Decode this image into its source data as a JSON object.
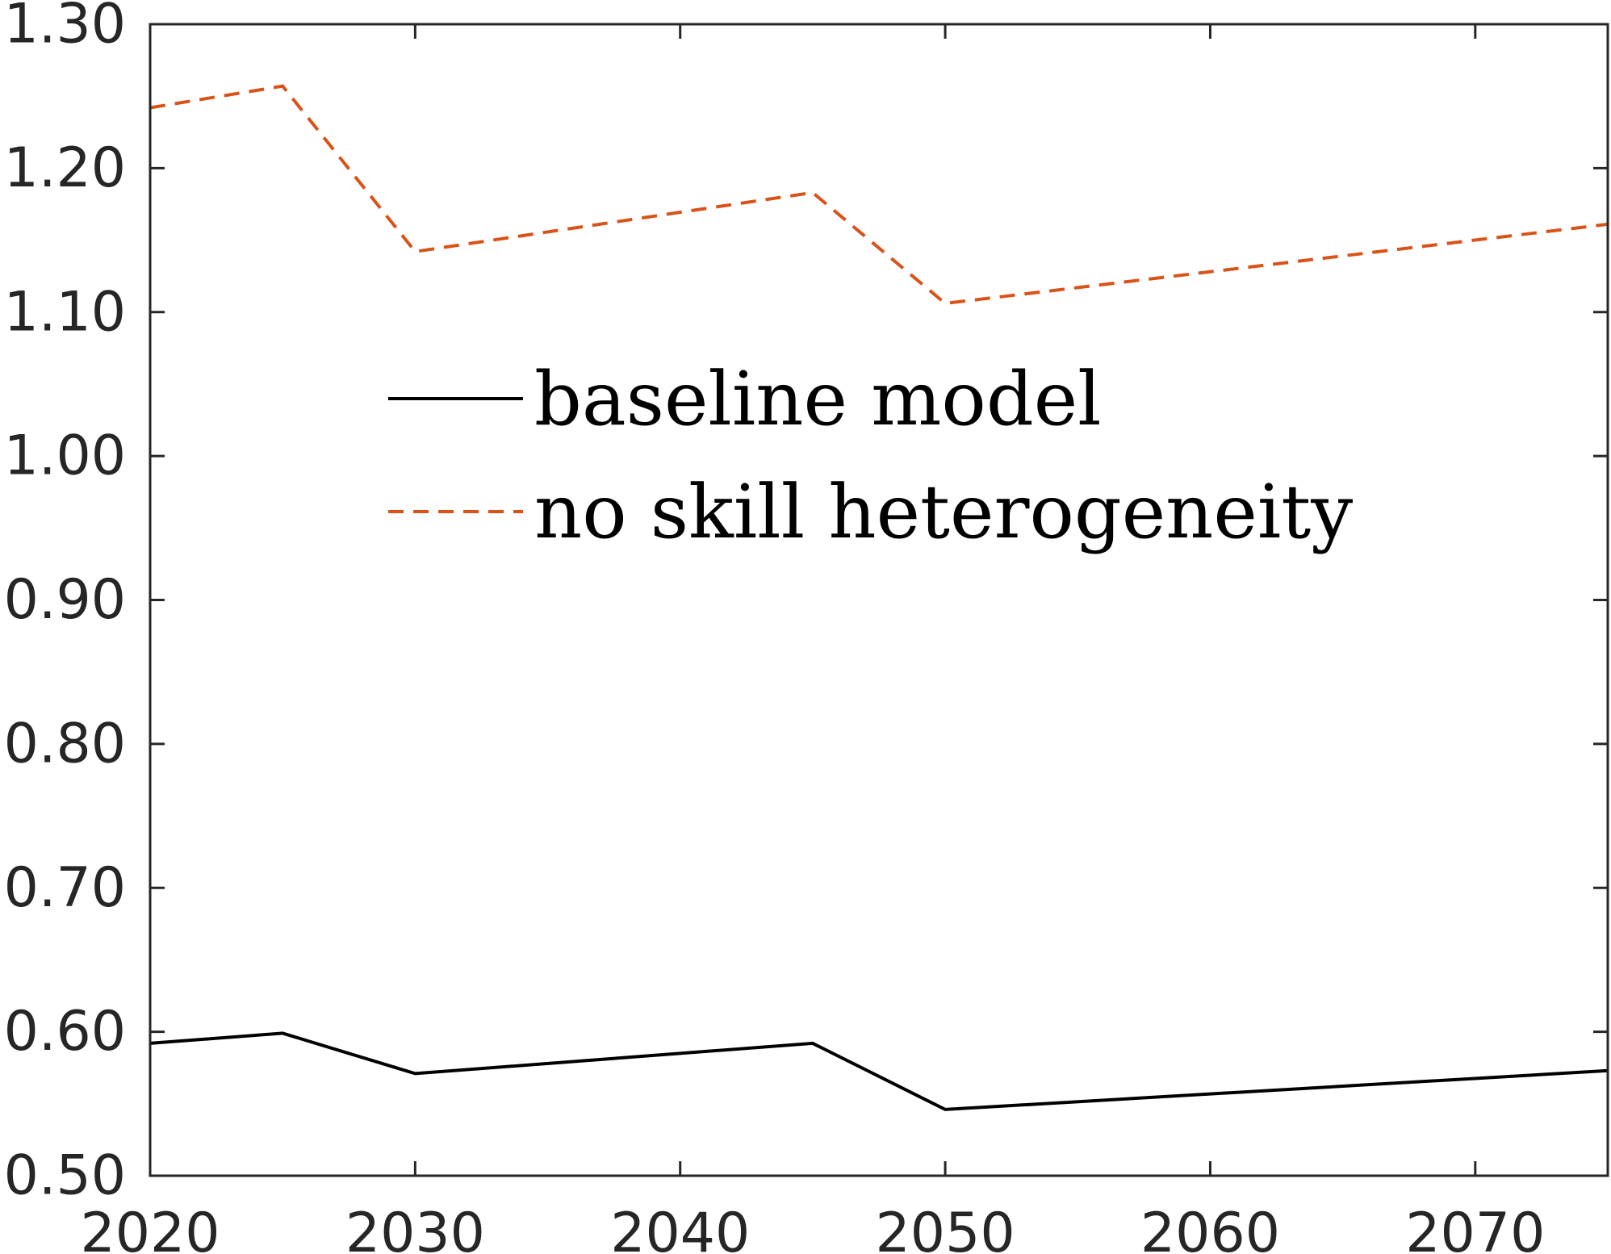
{
  "chart_data": {
    "type": "line",
    "title": "",
    "xlabel": "",
    "ylabel": "",
    "xlim": [
      2020,
      2075
    ],
    "ylim": [
      0.5,
      1.3
    ],
    "x_ticks": [
      2020,
      2030,
      2040,
      2050,
      2060,
      2070
    ],
    "x_tick_labels": [
      "2020",
      "2030",
      "2040",
      "2050",
      "2060",
      "2070"
    ],
    "y_ticks": [
      0.5,
      0.6,
      0.7,
      0.8,
      0.9,
      1.0,
      1.1,
      1.2,
      1.3
    ],
    "y_tick_labels": [
      "0.50",
      "0.60",
      "0.70",
      "0.80",
      "0.90",
      "1.00",
      "1.10",
      "1.20",
      "1.30"
    ],
    "grid": false,
    "legend_position": "upper-center",
    "series": [
      {
        "name": "baseline model",
        "color": "#000000",
        "style": "solid",
        "x": [
          2020,
          2025,
          2030,
          2045,
          2050,
          2075
        ],
        "y": [
          0.592,
          0.599,
          0.571,
          0.592,
          0.546,
          0.573
        ]
      },
      {
        "name": "no skill heterogeneity",
        "color": "#D95319",
        "style": "dashed",
        "x": [
          2020,
          2025,
          2030,
          2045,
          2050,
          2075
        ],
        "y": [
          1.242,
          1.257,
          1.142,
          1.183,
          1.106,
          1.161
        ]
      }
    ]
  }
}
